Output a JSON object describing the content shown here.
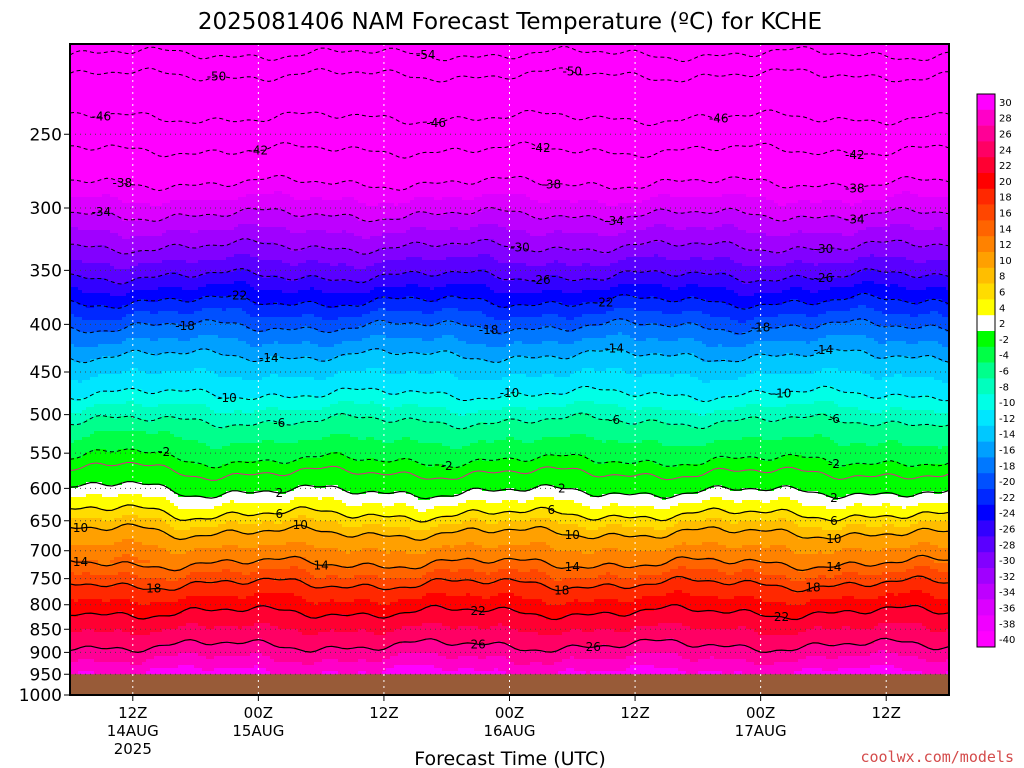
{
  "chart_data": {
    "type": "heatmap",
    "title": "2025081406 NAM Forecast Temperature (ºC) for KCHE",
    "xlabel": "Forecast Time (UTC)",
    "ylabel": "",
    "credit": "coolwx.com/models",
    "y_scale": "log-pressure",
    "y_reversed": true,
    "ylim": [
      1000,
      200
    ],
    "y_ticks": [
      {
        "v": 250,
        "label": "250"
      },
      {
        "v": 300,
        "label": "300"
      },
      {
        "v": 350,
        "label": "350"
      },
      {
        "v": 400,
        "label": "400"
      },
      {
        "v": 450,
        "label": "450"
      },
      {
        "v": 500,
        "label": "500"
      },
      {
        "v": 550,
        "label": "550"
      },
      {
        "v": 600,
        "label": "600"
      },
      {
        "v": 650,
        "label": "650"
      },
      {
        "v": 700,
        "label": "700"
      },
      {
        "v": 750,
        "label": "750"
      },
      {
        "v": 800,
        "label": "800"
      },
      {
        "v": 850,
        "label": "850"
      },
      {
        "v": 900,
        "label": "900"
      },
      {
        "v": 950,
        "label": "950"
      },
      {
        "v": 1000,
        "label": "1000"
      }
    ],
    "x_ticks": [
      {
        "t": "2025-08-14 12Z",
        "h": 6,
        "label": "12Z",
        "sub": "14AUG",
        "sub2": "2025"
      },
      {
        "t": "2025-08-15 00Z",
        "h": 18,
        "label": "00Z",
        "sub": "15AUG",
        "sub2": ""
      },
      {
        "t": "2025-08-15 12Z",
        "h": 30,
        "label": "12Z",
        "sub": "",
        "sub2": ""
      },
      {
        "t": "2025-08-16 00Z",
        "h": 42,
        "label": "00Z",
        "sub": "16AUG",
        "sub2": ""
      },
      {
        "t": "2025-08-16 12Z",
        "h": 54,
        "label": "12Z",
        "sub": "",
        "sub2": ""
      },
      {
        "t": "2025-08-17 00Z",
        "h": 66,
        "label": "00Z",
        "sub": "17AUG",
        "sub2": ""
      },
      {
        "t": "2025-08-17 12Z",
        "h": 78,
        "label": "12Z",
        "sub": "",
        "sub2": ""
      }
    ],
    "xlim": [
      "2025-08-14 06Z",
      "2025-08-17 18Z"
    ],
    "grid": true,
    "underground_level": 950,
    "underground_color": "#985b38",
    "colorbar": {
      "placement": "right",
      "levels": [
        30,
        28,
        26,
        24,
        22,
        20,
        18,
        16,
        14,
        12,
        10,
        8,
        6,
        4,
        2,
        -2,
        -4,
        -6,
        -8,
        -10,
        -12,
        -14,
        -16,
        -18,
        -20,
        -22,
        -24,
        -26,
        -28,
        -30,
        -32,
        -34,
        -36,
        -38,
        -40
      ],
      "colors": [
        "#ff00ff",
        "#ff00c8",
        "#ff0096",
        "#ff0064",
        "#ff0032",
        "#ff0000",
        "#ff2800",
        "#ff4600",
        "#ff6400",
        "#ff8200",
        "#ffa000",
        "#ffbe00",
        "#ffdc00",
        "#ffff00",
        "#ffffff",
        "#00ff00",
        "#00ff46",
        "#00ff8c",
        "#00ffbe",
        "#00ffe6",
        "#00e6ff",
        "#00c8ff",
        "#00a0ff",
        "#0078ff",
        "#0050ff",
        "#0028ff",
        "#0000ff",
        "#3200ff",
        "#5a00ff",
        "#8200ff",
        "#a000ff",
        "#be00ff",
        "#dc00ff",
        "#f000ff",
        "#ff00ff"
      ]
    },
    "contours": [
      {
        "value": -54,
        "p": 205,
        "style": "dashed",
        "labels": [
          {
            "x": 34,
            "label": "-54"
          }
        ]
      },
      {
        "value": -50,
        "p": 216,
        "style": "dashed",
        "labels": [
          {
            "x": 14,
            "label": "-50"
          },
          {
            "x": 48,
            "label": "-50"
          }
        ]
      },
      {
        "value": -46,
        "p": 240,
        "style": "dashed",
        "labels": [
          {
            "x": 3,
            "label": "-46"
          },
          {
            "x": 35,
            "label": "-46"
          },
          {
            "x": 62,
            "label": "-46"
          }
        ]
      },
      {
        "value": -42,
        "p": 260,
        "style": "dashed",
        "labels": [
          {
            "x": 18,
            "label": "-42"
          },
          {
            "x": 45,
            "label": "-42"
          },
          {
            "x": 75,
            "label": "-42"
          }
        ]
      },
      {
        "value": -38,
        "p": 282,
        "style": "dashed",
        "labels": [
          {
            "x": 5,
            "label": "-38"
          },
          {
            "x": 46,
            "label": "-38"
          },
          {
            "x": 75,
            "label": "-38"
          }
        ]
      },
      {
        "value": -34,
        "p": 305,
        "style": "dashed",
        "labels": [
          {
            "x": 3,
            "label": "-34"
          },
          {
            "x": 52,
            "label": "-34"
          },
          {
            "x": 75,
            "label": "-34"
          }
        ]
      },
      {
        "value": -30,
        "p": 330,
        "style": "dashed",
        "labels": [
          {
            "x": 43,
            "label": "-30"
          },
          {
            "x": 72,
            "label": "-30"
          }
        ]
      },
      {
        "value": -26,
        "p": 355,
        "style": "dashed",
        "labels": [
          {
            "x": 45,
            "label": "-26"
          },
          {
            "x": 72,
            "label": "-26"
          }
        ]
      },
      {
        "value": -22,
        "p": 378,
        "style": "dashed",
        "labels": [
          {
            "x": 16,
            "label": "-22"
          },
          {
            "x": 51,
            "label": "-22"
          }
        ]
      },
      {
        "value": -18,
        "p": 402,
        "style": "dashed",
        "labels": [
          {
            "x": 11,
            "label": "-18"
          },
          {
            "x": 40,
            "label": "-18"
          },
          {
            "x": 66,
            "label": "-18"
          }
        ]
      },
      {
        "value": -14,
        "p": 432,
        "style": "dashed",
        "labels": [
          {
            "x": 19,
            "label": "-14"
          },
          {
            "x": 52,
            "label": "-14"
          },
          {
            "x": 72,
            "label": "-14"
          }
        ]
      },
      {
        "value": -10,
        "p": 475,
        "style": "dashed",
        "labels": [
          {
            "x": 15,
            "label": "-10"
          },
          {
            "x": 42,
            "label": "-10"
          },
          {
            "x": 68,
            "label": "-10"
          }
        ]
      },
      {
        "value": -6,
        "p": 508,
        "style": "dashed",
        "labels": [
          {
            "x": 20,
            "label": "-6"
          },
          {
            "x": 52,
            "label": "-6"
          },
          {
            "x": 73,
            "label": "-6"
          }
        ]
      },
      {
        "value": -2,
        "p": 560,
        "style": "dashed",
        "labels": [
          {
            "x": 9,
            "label": "-2"
          },
          {
            "x": 36,
            "label": "-2"
          },
          {
            "x": 73,
            "label": "-2"
          }
        ]
      },
      {
        "value": 0,
        "p": 578,
        "style": "magenta",
        "labels": []
      },
      {
        "value": 2,
        "p": 605,
        "style": "solid",
        "labels": [
          {
            "x": 20,
            "label": "2"
          },
          {
            "x": 47,
            "label": "2"
          },
          {
            "x": 73,
            "label": "2"
          }
        ]
      },
      {
        "value": 6,
        "p": 640,
        "style": "solid",
        "labels": [
          {
            "x": 20,
            "label": "6"
          },
          {
            "x": 46,
            "label": "6"
          },
          {
            "x": 73,
            "label": "6"
          }
        ]
      },
      {
        "value": 10,
        "p": 670,
        "style": "solid",
        "labels": [
          {
            "x": 1,
            "label": "10"
          },
          {
            "x": 22,
            "label": "10"
          },
          {
            "x": 48,
            "label": "10"
          },
          {
            "x": 73,
            "label": "10"
          }
        ]
      },
      {
        "value": 14,
        "p": 722,
        "style": "solid",
        "labels": [
          {
            "x": 1,
            "label": "14"
          },
          {
            "x": 24,
            "label": "14"
          },
          {
            "x": 48,
            "label": "14"
          },
          {
            "x": 73,
            "label": "14"
          }
        ]
      },
      {
        "value": 18,
        "p": 760,
        "style": "solid",
        "labels": [
          {
            "x": 8,
            "label": "18"
          },
          {
            "x": 47,
            "label": "18"
          },
          {
            "x": 71,
            "label": "18"
          }
        ]
      },
      {
        "value": 22,
        "p": 815,
        "style": "solid",
        "labels": [
          {
            "x": 39,
            "label": "22"
          },
          {
            "x": 68,
            "label": "22"
          }
        ]
      },
      {
        "value": 26,
        "p": 885,
        "style": "solid",
        "labels": [
          {
            "x": 39,
            "label": "26"
          },
          {
            "x": 50,
            "label": "26"
          }
        ]
      }
    ]
  }
}
